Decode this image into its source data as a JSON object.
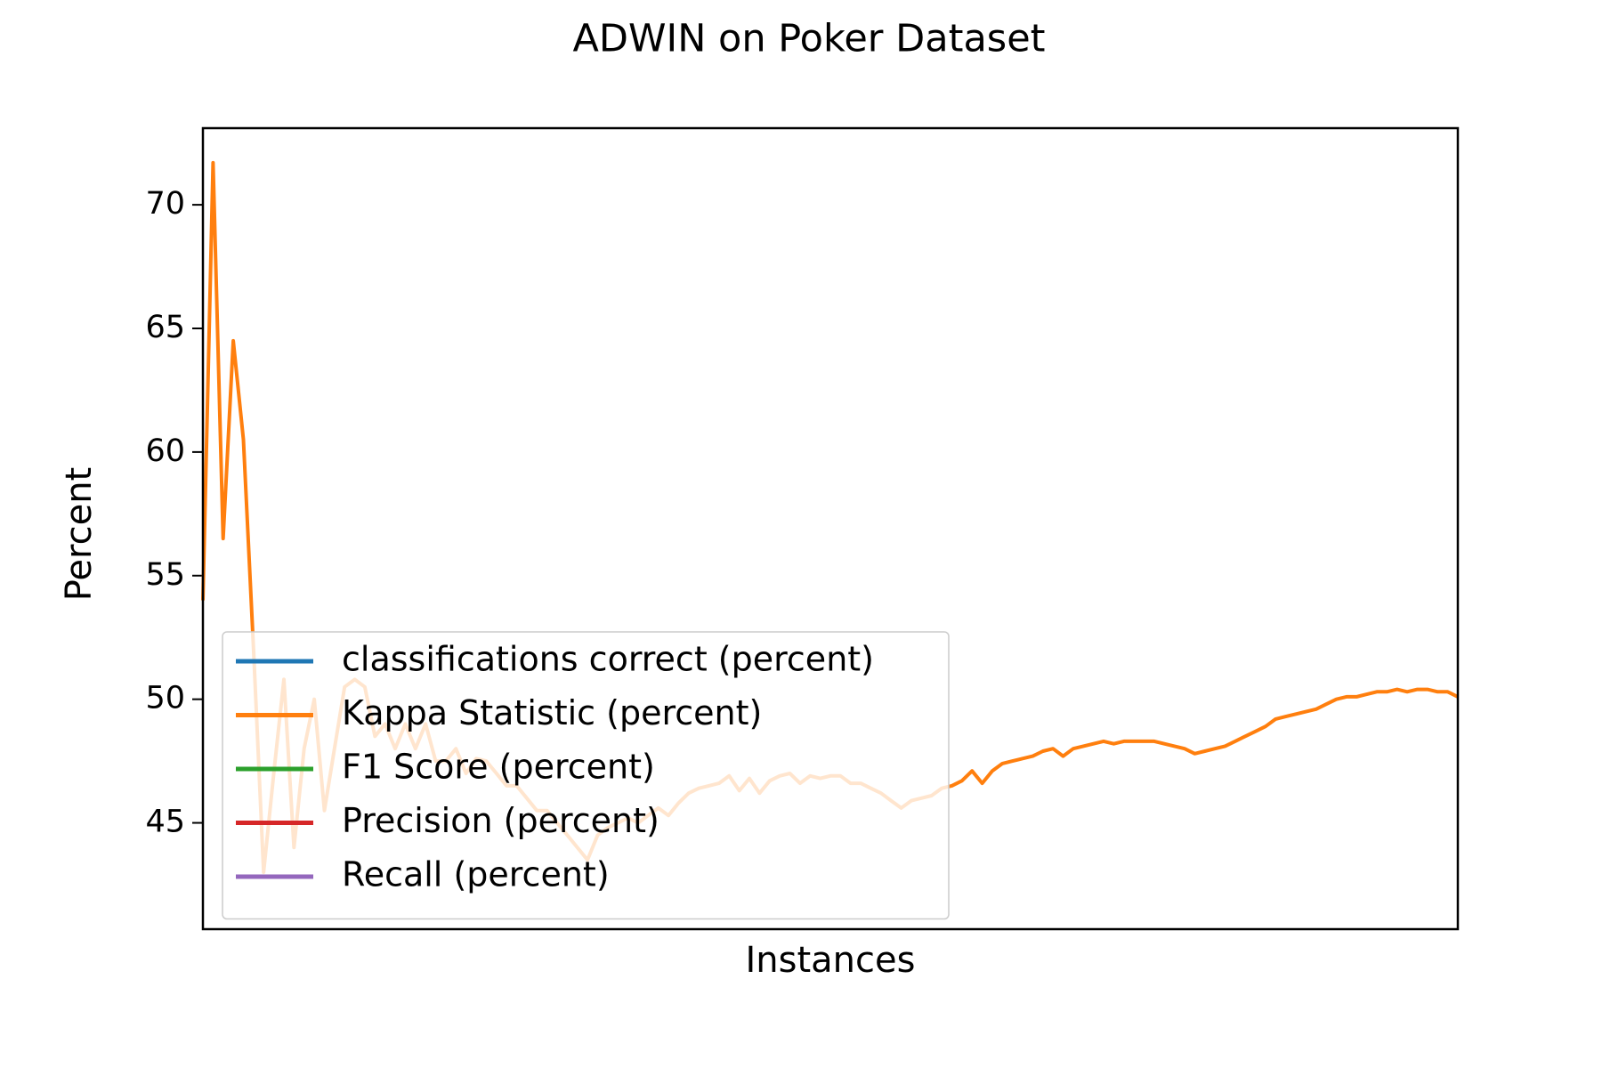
{
  "chart_data": {
    "type": "line",
    "title": "ADWIN on Poker Dataset",
    "x_label": "Instances",
    "y_label": "Percent",
    "ylim": [
      40.7,
      73.1
    ],
    "yticks": [
      45,
      50,
      55,
      60,
      65,
      70
    ],
    "legend": "lower left",
    "series": [
      {
        "name": "classifications correct (percent)",
        "color": "#1f77b4",
        "values": []
      },
      {
        "name": "Kappa Statistic (percent)",
        "color": "#ff7f0e",
        "values": [
          54,
          71.7,
          56.5,
          64.5,
          60.5,
          52,
          43,
          47,
          50.8,
          44,
          48,
          50,
          45.5,
          48,
          50.5,
          50.8,
          50.5,
          48.5,
          49,
          48,
          49,
          48,
          49,
          47.5,
          47.5,
          48,
          47,
          47.6,
          47.5,
          47,
          46.5,
          46.5,
          46,
          45.5,
          45.5,
          45,
          44.5,
          44,
          43.5,
          44.5,
          44.8,
          45,
          45.2,
          45,
          45.3,
          45.6,
          45.3,
          45.8,
          46.2,
          46.4,
          46.5,
          46.6,
          46.9,
          46.3,
          46.8,
          46.2,
          46.7,
          46.9,
          47.0,
          46.6,
          46.9,
          46.8,
          46.9,
          46.9,
          46.6,
          46.6,
          46.4,
          46.2,
          45.9,
          45.6,
          45.9,
          46.0,
          46.1,
          46.4,
          46.5,
          46.7,
          47.1,
          46.6,
          47.1,
          47.4,
          47.5,
          47.6,
          47.7,
          47.9,
          48.0,
          47.7,
          48.0,
          48.1,
          48.2,
          48.3,
          48.2,
          48.3,
          48.3,
          48.3,
          48.3,
          48.2,
          48.1,
          48.0,
          47.8,
          47.9,
          48.0,
          48.1,
          48.3,
          48.5,
          48.7,
          48.9,
          49.2,
          49.3,
          49.4,
          49.5,
          49.6,
          49.8,
          50.0,
          50.1,
          50.1,
          50.2,
          50.3,
          50.3,
          50.4,
          50.3,
          50.4,
          50.4,
          50.3,
          50.3,
          50.1
        ]
      },
      {
        "name": "F1 Score (percent)",
        "color": "#2ca02c",
        "values": []
      },
      {
        "name": "Precision (percent)",
        "color": "#d62728",
        "values": []
      },
      {
        "name": "Recall (percent)",
        "color": "#9467bd",
        "values": []
      }
    ]
  }
}
